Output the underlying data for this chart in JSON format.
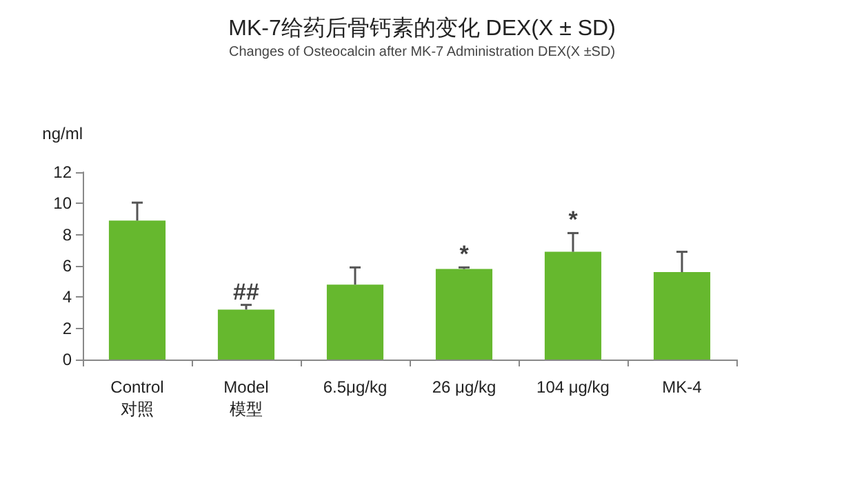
{
  "chart_data": {
    "type": "bar",
    "title": "MK-7给药后骨钙素的变化 DEX(X ± SD)",
    "subtitle": "Changes of Osteocalcin after MK-7 Administration DEX(X ±SD)",
    "ylabel": "ng/ml",
    "categories": [
      "Control\n对照",
      "Model\n模型",
      "6.5μg/kg",
      "26 μg/kg",
      "104 μg/kg",
      "MK-4"
    ],
    "values": [
      8.9,
      3.2,
      4.8,
      5.8,
      6.9,
      5.6
    ],
    "errors": [
      [
        8.9,
        10.05
      ],
      [
        3.2,
        3.5
      ],
      [
        4.8,
        5.9
      ],
      [
        5.8,
        5.9
      ],
      [
        6.9,
        8.1
      ],
      [
        5.6,
        6.9
      ]
    ],
    "color": "#66b82e",
    "ylim": [
      0,
      12
    ],
    "yticks": [
      0,
      2,
      4,
      6,
      8,
      10,
      12
    ],
    "annotations": [
      {
        "text": "##",
        "x": "Model\n模型",
        "y": 3.5
      },
      {
        "text": "*",
        "x": "26 μg/kg",
        "y": 5.9
      },
      {
        "text": "*",
        "x": "104 μg/kg",
        "y": 8.1
      }
    ],
    "grid": false
  }
}
